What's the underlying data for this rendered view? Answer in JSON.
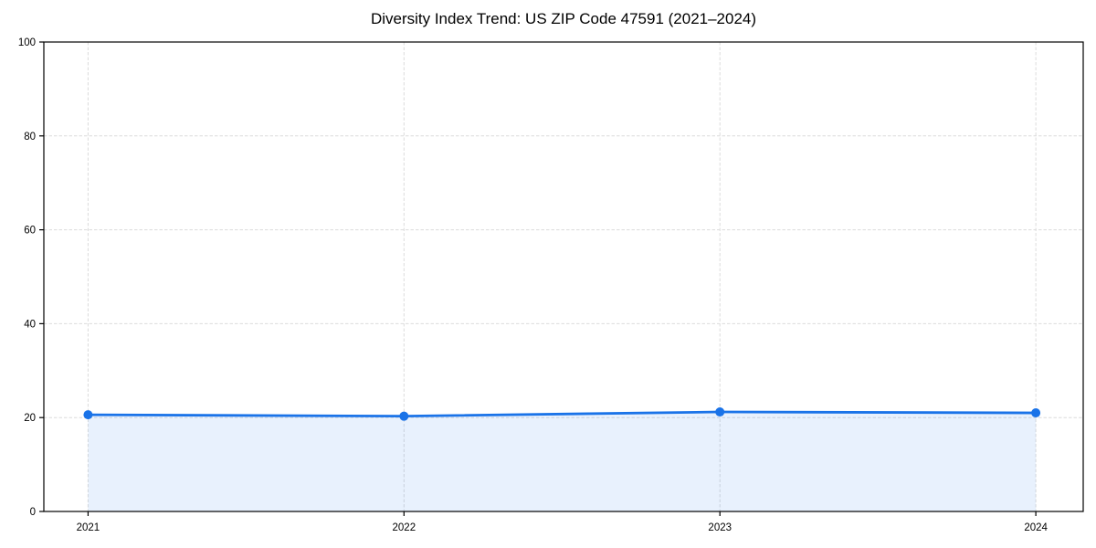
{
  "chart_data": {
    "type": "line",
    "title": "Diversity Index Trend: US ZIP Code 47591 (2021–2024)",
    "series_name": "Diversity Index",
    "x": [
      2021,
      2022,
      2023,
      2024
    ],
    "values": [
      20.6,
      20.3,
      21.2,
      21.0
    ],
    "xlabel": "",
    "ylabel": "",
    "xticks": [
      2021,
      2022,
      2023,
      2024
    ],
    "yticks": [
      0,
      20,
      40,
      60,
      80,
      100
    ],
    "xlim": [
      2020.86,
      2024.15
    ],
    "ylim": [
      0,
      100
    ],
    "grid": "dashed-both-axes",
    "legend_position": "none",
    "area_fill": true,
    "markers": "circle",
    "colors": {
      "line": "#1a73e8",
      "marker": "#1a73e8",
      "fill": "rgba(26,115,232,0.10)",
      "grid": "#dcdcdc",
      "axis": "#000000",
      "tick_text": "#000000",
      "background": "#ffffff"
    }
  }
}
